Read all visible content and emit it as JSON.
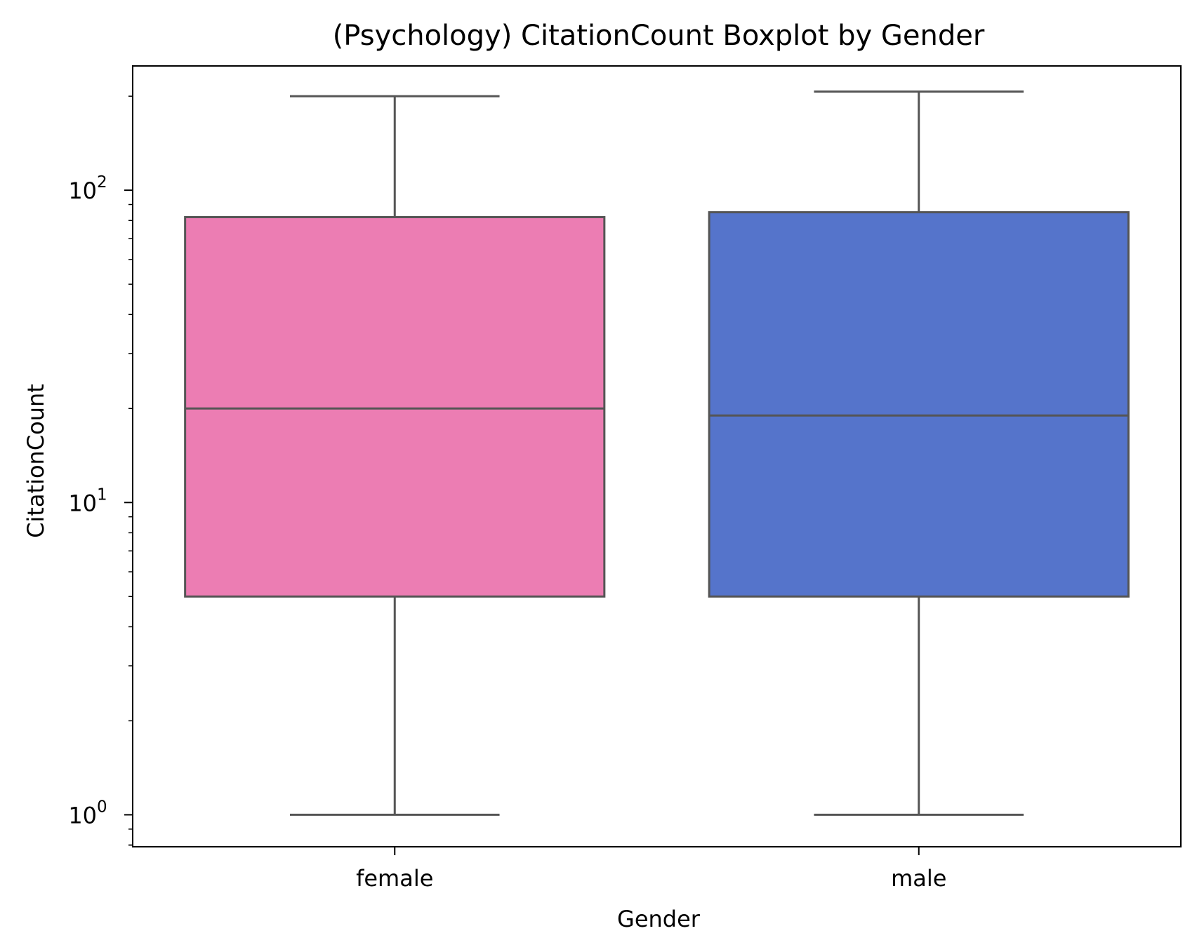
{
  "chart_data": {
    "type": "boxplot",
    "title": "(Psychology) CitationCount Boxplot by Gender",
    "xlabel": "Gender",
    "ylabel": "CitationCount",
    "y_scale": "log",
    "ylim": [
      0.79,
      250
    ],
    "y_major_ticks": [
      {
        "value": 1,
        "base": "10",
        "exponent": "0"
      },
      {
        "value": 10,
        "base": "10",
        "exponent": "1"
      },
      {
        "value": 100,
        "base": "10",
        "exponent": "2"
      }
    ],
    "grid": false,
    "legend": "none",
    "categories": [
      "female",
      "male"
    ],
    "boxes": [
      {
        "category": "female",
        "whisker_low": 1,
        "q1": 5,
        "median": 20,
        "q3": 82,
        "whisker_high": 200,
        "color": "#EC7DB3"
      },
      {
        "category": "male",
        "whisker_low": 1,
        "q1": 5,
        "median": 19,
        "q3": 85,
        "whisker_high": 207,
        "color": "#5574CB"
      }
    ],
    "line_color": "#555555",
    "axis_color": "#000000"
  }
}
